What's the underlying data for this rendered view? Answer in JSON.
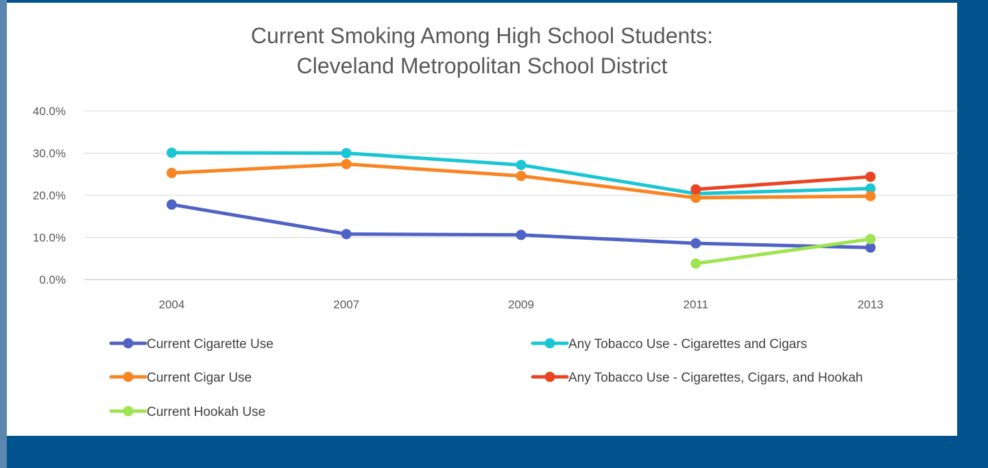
{
  "chart_data": {
    "type": "line",
    "title": "Current Smoking Among High School Students:",
    "subtitle": "Cleveland Metropolitan School District",
    "categories": [
      "2004",
      "2007",
      "2009",
      "2011",
      "2013"
    ],
    "y_ticks": [
      "0.0%",
      "10.0%",
      "20.0%",
      "30.0%",
      "40.0%"
    ],
    "ylim": [
      0,
      40
    ],
    "grid": true,
    "legend_position": "bottom",
    "series": [
      {
        "name": "Current Cigarette Use",
        "color": "#4f63c7",
        "values": [
          17.8,
          10.8,
          10.6,
          8.6,
          7.6
        ]
      },
      {
        "name": "Any Tobacco Use - Cigarettes and Cigars",
        "color": "#1ac6d4",
        "values": [
          30.1,
          30.0,
          27.2,
          20.4,
          21.6
        ]
      },
      {
        "name": "Current Cigar Use",
        "color": "#f98422",
        "values": [
          25.3,
          27.4,
          24.6,
          19.4,
          19.8
        ]
      },
      {
        "name": "Any Tobacco Use - Cigarettes, Cigars, and Hookah",
        "color": "#ea4422",
        "values": [
          null,
          null,
          null,
          21.4,
          24.4
        ]
      },
      {
        "name": "Current Hookah Use",
        "color": "#9ee44f",
        "values": [
          null,
          null,
          null,
          3.8,
          9.6
        ]
      }
    ]
  }
}
